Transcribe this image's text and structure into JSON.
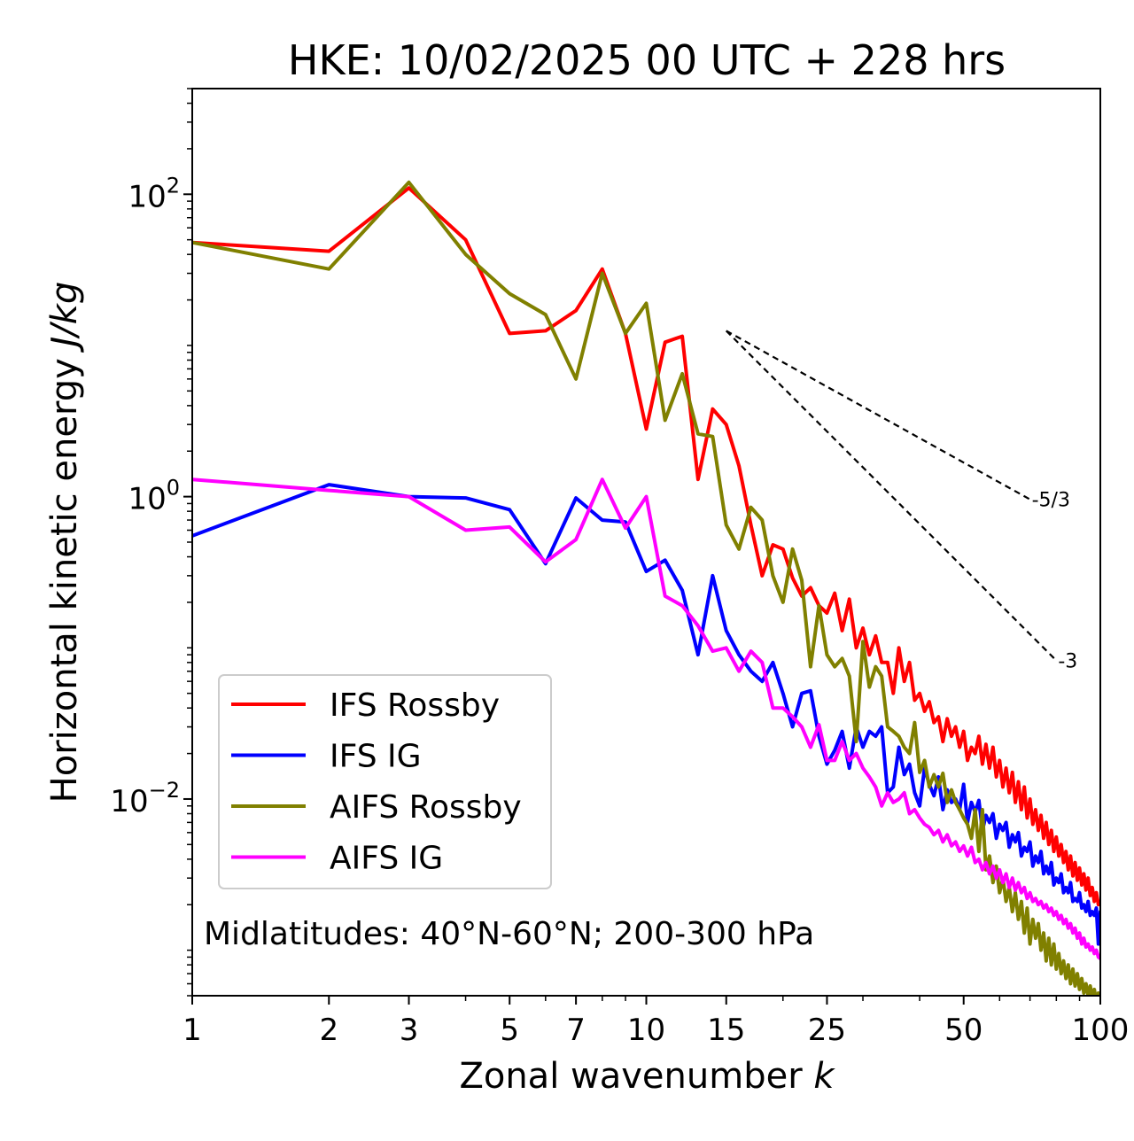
{
  "chart_data": {
    "type": "line",
    "title": "HKE: 10/02/2025 00 UTC + 228 hrs",
    "xlabel": "Zonal wavenumber",
    "xlabel_var": "k",
    "ylabel": "Horizontal kinetic energy",
    "ylabel_units": "J/kg",
    "xscale": "log",
    "yscale": "log",
    "xlim": [
      1,
      100
    ],
    "ylim": [
      0.0005,
      500
    ],
    "x_ticks": [
      1,
      2,
      3,
      5,
      7,
      10,
      15,
      25,
      50,
      100
    ],
    "x_tick_labels": [
      "1",
      "2",
      "3",
      "5",
      "7",
      "10",
      "15",
      "25",
      "50",
      "100"
    ],
    "y_ticks": [
      0.01,
      1,
      100
    ],
    "y_tick_labels": [
      [
        "10",
        "−2"
      ],
      [
        "10",
        "0"
      ],
      [
        "10",
        "2"
      ]
    ],
    "grid": false,
    "legend_position": "lower-left",
    "annotation": "Midlatitudes: 40°N-60°N; 200-300 hPa",
    "reference_slopes": [
      {
        "label": "-5/3",
        "exponent": -1.6667,
        "x_start": 15,
        "x_end": 70,
        "y_start": 12.5,
        "color": "#000000"
      },
      {
        "label": "-3",
        "exponent": -3,
        "x_start": 15,
        "x_end": 80,
        "y_start": 12.5,
        "color": "#000000"
      }
    ],
    "series": [
      {
        "name": "IFS Rossby",
        "color": "#ff0000",
        "x": [
          1,
          2,
          3,
          4,
          5,
          6,
          7,
          8,
          9,
          10,
          11,
          12,
          13,
          14,
          15,
          16,
          17,
          18,
          19,
          20,
          21,
          22,
          23,
          24,
          25,
          26,
          27,
          28,
          29,
          30,
          31,
          32,
          33,
          34,
          35,
          36,
          37,
          38,
          39,
          40,
          41,
          42,
          43,
          44,
          45,
          46,
          47,
          48,
          49,
          50,
          51,
          52,
          53,
          54,
          55,
          56,
          57,
          58,
          59,
          60,
          61,
          62,
          63,
          64,
          65,
          66,
          67,
          68,
          69,
          70,
          71,
          72,
          73,
          74,
          75,
          76,
          77,
          78,
          79,
          80,
          81,
          82,
          83,
          84,
          85,
          86,
          87,
          88,
          89,
          90,
          91,
          92,
          93,
          94,
          95,
          96,
          97,
          98,
          99,
          100
        ],
        "y": [
          48,
          42,
          110,
          50,
          12,
          12.5,
          17,
          32,
          12,
          2.8,
          10.5,
          11.5,
          1.3,
          3.8,
          3,
          1.6,
          0.65,
          0.3,
          0.48,
          0.45,
          0.29,
          0.22,
          0.25,
          0.19,
          0.17,
          0.23,
          0.13,
          0.21,
          0.1,
          0.135,
          0.09,
          0.12,
          0.08,
          0.08,
          0.05,
          0.1,
          0.06,
          0.08,
          0.045,
          0.05,
          0.038,
          0.044,
          0.032,
          0.035,
          0.024,
          0.034,
          0.026,
          0.03,
          0.022,
          0.028,
          0.018,
          0.022,
          0.02,
          0.026,
          0.017,
          0.023,
          0.016,
          0.022,
          0.014,
          0.018,
          0.012,
          0.016,
          0.011,
          0.015,
          0.0095,
          0.013,
          0.0085,
          0.012,
          0.0075,
          0.01,
          0.0068,
          0.0085,
          0.0062,
          0.0078,
          0.0055,
          0.007,
          0.005,
          0.0062,
          0.0045,
          0.0056,
          0.0042,
          0.005,
          0.0038,
          0.0045,
          0.0034,
          0.0042,
          0.0031,
          0.0038,
          0.0029,
          0.0035,
          0.0027,
          0.0032,
          0.0025,
          0.003,
          0.0023,
          0.0026,
          0.0021,
          0.0024,
          0.002,
          0.0021
        ]
      },
      {
        "name": "IFS IG",
        "color": "#0000ff",
        "x": [
          1,
          2,
          3,
          4,
          5,
          6,
          7,
          8,
          9,
          10,
          11,
          12,
          13,
          14,
          15,
          16,
          17,
          18,
          19,
          20,
          21,
          22,
          23,
          24,
          25,
          26,
          27,
          28,
          29,
          30,
          31,
          32,
          33,
          34,
          35,
          36,
          37,
          38,
          39,
          40,
          41,
          42,
          43,
          44,
          45,
          46,
          47,
          48,
          49,
          50,
          51,
          52,
          53,
          54,
          55,
          56,
          57,
          58,
          59,
          60,
          61,
          62,
          63,
          64,
          65,
          66,
          67,
          68,
          69,
          70,
          71,
          72,
          73,
          74,
          75,
          76,
          77,
          78,
          79,
          80,
          81,
          82,
          83,
          84,
          85,
          86,
          87,
          88,
          89,
          90,
          91,
          92,
          93,
          94,
          95,
          96,
          97,
          98,
          99,
          100
        ],
        "y": [
          0.55,
          1.2,
          1.0,
          0.98,
          0.82,
          0.36,
          0.98,
          0.7,
          0.68,
          0.32,
          0.38,
          0.24,
          0.09,
          0.3,
          0.13,
          0.09,
          0.07,
          0.06,
          0.08,
          0.05,
          0.03,
          0.05,
          0.052,
          0.026,
          0.017,
          0.021,
          0.028,
          0.016,
          0.03,
          0.022,
          0.028,
          0.026,
          0.03,
          0.011,
          0.012,
          0.022,
          0.0145,
          0.017,
          0.011,
          0.009,
          0.016,
          0.0125,
          0.0105,
          0.014,
          0.0085,
          0.0115,
          0.0095,
          0.01,
          0.0085,
          0.0125,
          0.007,
          0.0095,
          0.0082,
          0.0098,
          0.0062,
          0.0078,
          0.007,
          0.008,
          0.0055,
          0.0068,
          0.0062,
          0.007,
          0.0048,
          0.0058,
          0.0052,
          0.006,
          0.0042,
          0.0048,
          0.0045,
          0.0052,
          0.0036,
          0.0042,
          0.0038,
          0.0045,
          0.0032,
          0.0036,
          0.0032,
          0.0038,
          0.0027,
          0.003,
          0.0028,
          0.0032,
          0.0024,
          0.0026,
          0.0024,
          0.0028,
          0.0021,
          0.0022,
          0.0021,
          0.0024,
          0.0019,
          0.002,
          0.0018,
          0.0021,
          0.0017,
          0.0018,
          0.0017,
          0.0019,
          0.0011,
          0.0018
        ]
      },
      {
        "name": "AIFS Rossby",
        "color": "#808000",
        "x": [
          1,
          2,
          3,
          4,
          5,
          6,
          7,
          8,
          9,
          10,
          11,
          12,
          13,
          14,
          15,
          16,
          17,
          18,
          19,
          20,
          21,
          22,
          23,
          24,
          25,
          26,
          27,
          28,
          29,
          30,
          31,
          32,
          33,
          34,
          35,
          36,
          37,
          38,
          39,
          40,
          41,
          42,
          43,
          44,
          45,
          46,
          47,
          48,
          49,
          50,
          51,
          52,
          53,
          54,
          55,
          56,
          57,
          58,
          59,
          60,
          61,
          62,
          63,
          64,
          65,
          66,
          67,
          68,
          69,
          70,
          71,
          72,
          73,
          74,
          75,
          76,
          77,
          78,
          79,
          80,
          81,
          82,
          83,
          84,
          85,
          86,
          87,
          88,
          89,
          90,
          91,
          92,
          93,
          94,
          95,
          96,
          97,
          98,
          99,
          100
        ],
        "y": [
          48,
          32,
          120,
          40,
          22,
          16,
          6,
          30,
          12,
          19,
          3.2,
          6.5,
          2.6,
          2.5,
          0.65,
          0.45,
          0.85,
          0.7,
          0.3,
          0.2,
          0.45,
          0.28,
          0.075,
          0.19,
          0.09,
          0.075,
          0.085,
          0.065,
          0.024,
          0.11,
          0.055,
          0.075,
          0.065,
          0.03,
          0.028,
          0.026,
          0.022,
          0.02,
          0.032,
          0.015,
          0.018,
          0.012,
          0.0145,
          0.012,
          0.0148,
          0.0095,
          0.0115,
          0.0095,
          0.0085,
          0.0075,
          0.0068,
          0.0055,
          0.0085,
          0.0045,
          0.0085,
          0.0034,
          0.0042,
          0.0028,
          0.0036,
          0.0024,
          0.003,
          0.0021,
          0.0026,
          0.0018,
          0.0024,
          0.0016,
          0.0021,
          0.0013,
          0.0019,
          0.0011,
          0.0016,
          0.0012,
          0.0015,
          0.001,
          0.0013,
          0.00085,
          0.0012,
          0.0008,
          0.0011,
          0.00075,
          0.00095,
          0.0007,
          0.00085,
          0.00065,
          0.0008,
          0.0006,
          0.00075,
          0.00058,
          0.0007,
          0.00055,
          0.00065,
          0.00052,
          0.0006,
          0.0005,
          0.00058,
          0.00048,
          0.00055,
          0.00046,
          0.00052,
          0.0005
        ]
      },
      {
        "name": "AIFS IG",
        "color": "#ff00ff",
        "x": [
          1,
          2,
          3,
          4,
          5,
          6,
          7,
          8,
          9,
          10,
          11,
          12,
          13,
          14,
          15,
          16,
          17,
          18,
          19,
          20,
          21,
          22,
          23,
          24,
          25,
          26,
          27,
          28,
          29,
          30,
          31,
          32,
          33,
          34,
          35,
          36,
          37,
          38,
          39,
          40,
          41,
          42,
          43,
          44,
          45,
          46,
          47,
          48,
          49,
          50,
          51,
          52,
          53,
          54,
          55,
          56,
          57,
          58,
          59,
          60,
          61,
          62,
          63,
          64,
          65,
          66,
          67,
          68,
          69,
          70,
          71,
          72,
          73,
          74,
          75,
          76,
          77,
          78,
          79,
          80,
          81,
          82,
          83,
          84,
          85,
          86,
          87,
          88,
          89,
          90,
          91,
          92,
          93,
          94,
          95,
          96,
          97,
          98,
          99,
          100
        ],
        "y": [
          1.3,
          1.1,
          1.0,
          0.6,
          0.63,
          0.37,
          0.52,
          1.3,
          0.62,
          1.0,
          0.22,
          0.19,
          0.14,
          0.095,
          0.1,
          0.07,
          0.095,
          0.08,
          0.04,
          0.04,
          0.035,
          0.03,
          0.022,
          0.031,
          0.018,
          0.018,
          0.024,
          0.018,
          0.02,
          0.016,
          0.014,
          0.012,
          0.009,
          0.011,
          0.0095,
          0.01,
          0.011,
          0.008,
          0.0085,
          0.0075,
          0.0068,
          0.0065,
          0.0058,
          0.0062,
          0.0052,
          0.0058,
          0.0049,
          0.0052,
          0.0045,
          0.0049,
          0.0042,
          0.0048,
          0.0038,
          0.004,
          0.0034,
          0.0038,
          0.0032,
          0.0036,
          0.003,
          0.0034,
          0.0028,
          0.0032,
          0.0026,
          0.003,
          0.0025,
          0.0028,
          0.0024,
          0.0026,
          0.0022,
          0.0024,
          0.0021,
          0.0022,
          0.002,
          0.0021,
          0.0019,
          0.002,
          0.0018,
          0.0019,
          0.0017,
          0.0018,
          0.0016,
          0.0017,
          0.0015,
          0.0016,
          0.0014,
          0.0015,
          0.0013,
          0.0014,
          0.0012,
          0.0013,
          0.0011,
          0.0012,
          0.00105,
          0.0011,
          0.001,
          0.00105,
          0.00095,
          0.001,
          0.0009,
          0.00088
        ]
      }
    ]
  }
}
